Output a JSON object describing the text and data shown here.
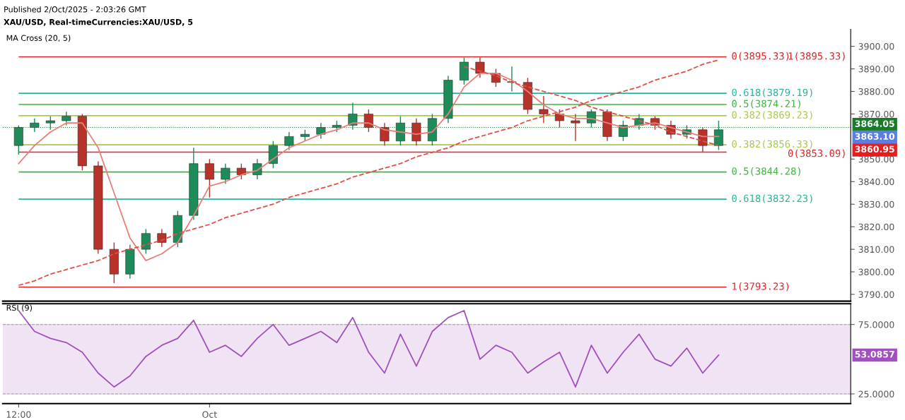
{
  "chart_data": [
    {
      "type": "candlestick",
      "title": "Published 2/Oct/2025 - 2:03:26 GMT",
      "subtitle": "XAU/USD, Real-timeCurrencies:XAU/USD, 5",
      "annotations": [
        "MA Cross (20, 5)",
        "1(3895.33)",
        "3863.10",
        "3860.95"
      ],
      "categories": [
        null,
        null,
        null,
        null,
        null,
        null,
        null,
        null,
        null,
        null,
        null,
        null,
        null,
        null,
        null,
        null,
        null,
        null,
        null,
        null,
        null,
        null,
        null,
        null,
        null,
        null,
        null,
        null,
        null,
        null,
        null,
        null,
        null,
        null,
        null,
        null,
        null,
        null,
        null,
        null,
        null,
        null,
        null,
        null,
        null
      ],
      "ohlc": [
        [
          3856,
          3865,
          3852,
          3864
        ],
        [
          3864,
          3868,
          3862,
          3866
        ],
        [
          3866,
          3869,
          3863,
          3867
        ],
        [
          3867,
          3871,
          3865,
          3869
        ],
        [
          3869,
          3870,
          3845,
          3847
        ],
        [
          3847,
          3849,
          3808,
          3810
        ],
        [
          3810,
          3813,
          3795,
          3799
        ],
        [
          3799,
          3812,
          3797,
          3810
        ],
        [
          3810,
          3819,
          3808,
          3817
        ],
        [
          3817,
          3819,
          3811,
          3813
        ],
        [
          3813,
          3827,
          3811,
          3825
        ],
        [
          3825,
          3855,
          3823,
          3848
        ],
        [
          3848,
          3850,
          3833,
          3841
        ],
        [
          3841,
          3848,
          3839,
          3846
        ],
        [
          3846,
          3848,
          3841,
          3843
        ],
        [
          3843,
          3850,
          3841,
          3848
        ],
        [
          3848,
          3858,
          3846,
          3856
        ],
        [
          3856,
          3862,
          3854,
          3860
        ],
        [
          3860,
          3863,
          3858,
          3861
        ],
        [
          3861,
          3866,
          3859,
          3864
        ],
        [
          3864,
          3867,
          3862,
          3865
        ],
        [
          3865,
          3875,
          3863,
          3870
        ],
        [
          3870,
          3872,
          3862,
          3864
        ],
        [
          3864,
          3866,
          3856,
          3858
        ],
        [
          3858,
          3869,
          3856,
          3866
        ],
        [
          3866,
          3868,
          3856,
          3858
        ],
        [
          3858,
          3870,
          3856,
          3868
        ],
        [
          3868,
          3887,
          3866,
          3885
        ],
        [
          3885,
          3895,
          3883,
          3893
        ],
        [
          3893,
          3895,
          3886,
          3888
        ],
        [
          3888,
          3890,
          3882,
          3884
        ],
        [
          3884,
          3891,
          3880,
          3884
        ],
        [
          3884,
          3886,
          3870,
          3872
        ],
        [
          3872,
          3878,
          3866,
          3870
        ],
        [
          3870,
          3872,
          3864,
          3867
        ],
        [
          3867,
          3870,
          3858,
          3866
        ],
        [
          3866,
          3872,
          3864,
          3871
        ],
        [
          3871,
          3872,
          3858,
          3860
        ],
        [
          3860,
          3867,
          3858,
          3865
        ],
        [
          3865,
          3870,
          3863,
          3868
        ],
        [
          3868,
          3869,
          3863,
          3865
        ],
        [
          3865,
          3867,
          3859,
          3861
        ],
        [
          3861,
          3865,
          3859,
          3863
        ],
        [
          3863,
          3864,
          3853,
          3856
        ],
        [
          3856,
          3867,
          3854,
          3863
        ]
      ],
      "colors": [
        "#1e8c5a",
        "#1e8c5a",
        "#1e8c5a",
        "#1e8c5a",
        "#b8322a",
        "#b8322a",
        "#b8322a",
        "#1e8c5a",
        "#1e8c5a",
        "#b8322a",
        "#1e8c5a",
        "#1e8c5a",
        "#b8322a",
        "#1e8c5a",
        "#b8322a",
        "#1e8c5a",
        "#1e8c5a",
        "#1e8c5a",
        "#1e8c5a",
        "#1e8c5a",
        "#1e8c5a",
        "#1e8c5a",
        "#b8322a",
        "#b8322a",
        "#1e8c5a",
        "#b8322a",
        "#1e8c5a",
        "#1e8c5a",
        "#1e8c5a",
        "#b8322a",
        "#b8322a",
        "#1e8c5a",
        "#b8322a",
        "#b8322a",
        "#b8322a",
        "#b8322a",
        "#1e8c5a",
        "#b8322a",
        "#1e8c5a",
        "#1e8c5a",
        "#b8322a",
        "#b8322a",
        "#1e8c5a",
        "#b8322a",
        "#1e8c5a"
      ],
      "series": [
        {
          "type": "line",
          "color": "#e8807a",
          "values": [
            3848,
            3856,
            3862,
            3866,
            3866,
            3855,
            3835,
            3815,
            3805,
            3808,
            3813,
            3825,
            3838,
            3840,
            3843,
            3845,
            3850,
            3855,
            3858,
            3861,
            3863,
            3866,
            3866,
            3863,
            3862,
            3861,
            3862,
            3870,
            3882,
            3888,
            3888,
            3885,
            3880,
            3874,
            3870,
            3868,
            3868,
            3866,
            3864,
            3865,
            3866,
            3864,
            3862,
            3860,
            3860
          ]
        },
        {
          "type": "line",
          "color": "#e0504a",
          "line_style": "dashed",
          "values": [
            3794,
            3796,
            3799,
            3801,
            3803,
            3805,
            3808,
            3810,
            3812,
            3814,
            3817,
            3819,
            3821,
            3824,
            3826,
            3828,
            3830,
            3833,
            3835,
            3837,
            3839,
            3842,
            3844,
            3846,
            3848,
            3851,
            3853,
            3855,
            3858,
            3860,
            3862,
            3864,
            3867,
            3869,
            3871,
            3873,
            3876,
            3878,
            3880,
            3882,
            3885,
            3887,
            3889,
            3892,
            3894
          ]
        },
        {
          "type": "line",
          "color": "#e0504a",
          "line_style": "dashed",
          "values": [
            null,
            null,
            null,
            null,
            null,
            null,
            null,
            null,
            null,
            null,
            null,
            null,
            null,
            null,
            null,
            null,
            null,
            null,
            null,
            null,
            null,
            null,
            null,
            null,
            null,
            null,
            null,
            null,
            3891,
            3889,
            3887,
            3884,
            3882,
            3880,
            3878,
            3876,
            3873,
            3871,
            3869,
            3867,
            3865,
            3862,
            3860,
            3858,
            3856
          ]
        }
      ],
      "ref_lines": [
        {
          "axis": "y",
          "value": 3895.33,
          "label": "0(3895.33)",
          "color": "#e0242a"
        },
        {
          "axis": "y",
          "value": 3879.19,
          "label": "0.618(3879.19)",
          "color": "#2bb59a"
        },
        {
          "axis": "y",
          "value": 3874.21,
          "label": "0.5(3874.21)",
          "color": "#44b244"
        },
        {
          "axis": "y",
          "value": 3869.23,
          "label": "0.382(3869.23)",
          "color": "#a9c94a"
        },
        {
          "axis": "y",
          "value": 3856.33,
          "label": "0.382(3856.33)",
          "color": "#a9c94a"
        },
        {
          "axis": "y",
          "value": 3853.09,
          "label": "0(3853.09)",
          "color": "#e0242a"
        },
        {
          "axis": "y",
          "value": 3844.28,
          "label": "0.5(3844.28)",
          "color": "#44b244"
        },
        {
          "axis": "y",
          "value": 3832.23,
          "label": "0.618(3832.23)",
          "color": "#2bb59a"
        },
        {
          "axis": "y",
          "value": 3793.23,
          "label": "1(3793.23)",
          "color": "#e0242a"
        },
        {
          "axis": "y",
          "value": 3864.05,
          "label": "3864.05",
          "color": "#1a7a2a",
          "line_style": "dotted"
        }
      ],
      "ylim": [
        3787,
        3907.5
      ],
      "yticks": [
        {
          "value": 3790,
          "label": "3790.00"
        },
        {
          "value": 3800,
          "label": "3800.00"
        },
        {
          "value": 3810,
          "label": "3810.00"
        },
        {
          "value": 3820,
          "label": "3820.00"
        },
        {
          "value": 3830,
          "label": "3830.00"
        },
        {
          "value": 3840,
          "label": "3840.00"
        },
        {
          "value": 3850,
          "label": "3850.00"
        },
        {
          "value": 3870,
          "label": "3870.00"
        },
        {
          "value": 3880,
          "label": "3880.00"
        },
        {
          "value": 3890,
          "label": "3890.00"
        },
        {
          "value": 3900,
          "label": "3900.00"
        }
      ],
      "tick_labels": "y"
    },
    {
      "type": "line",
      "title": "RSI (9)",
      "annotations": [
        "53.0857"
      ],
      "categories": [
        "12:00",
        null,
        null,
        null,
        null,
        null,
        null,
        null,
        null,
        null,
        null,
        null,
        "Oct",
        null,
        null,
        null,
        null,
        null,
        null,
        null,
        null,
        null,
        null,
        null,
        null,
        null,
        null,
        null,
        null,
        null,
        null,
        null,
        null,
        null,
        null,
        null,
        null,
        null,
        null,
        null,
        null,
        null,
        null,
        null,
        null
      ],
      "series": [
        {
          "color": "#a24fc0",
          "values": [
            85,
            70,
            65,
            62,
            55,
            40,
            30,
            38,
            52,
            60,
            65,
            78,
            55,
            60,
            52,
            65,
            75,
            60,
            65,
            70,
            62,
            80,
            55,
            40,
            68,
            45,
            70,
            80,
            85,
            50,
            60,
            55,
            40,
            48,
            55,
            30,
            60,
            40,
            55,
            68,
            50,
            45,
            58,
            40,
            53
          ]
        }
      ],
      "bands": [
        {
          "axis": "y",
          "from": 25,
          "to": 75,
          "color": "#f0e3f3"
        }
      ],
      "ylim": [
        18,
        90
      ],
      "yticks": [
        {
          "value": 25,
          "label": "25.0000"
        },
        {
          "value": 75,
          "label": "75.0000"
        }
      ]
    }
  ]
}
